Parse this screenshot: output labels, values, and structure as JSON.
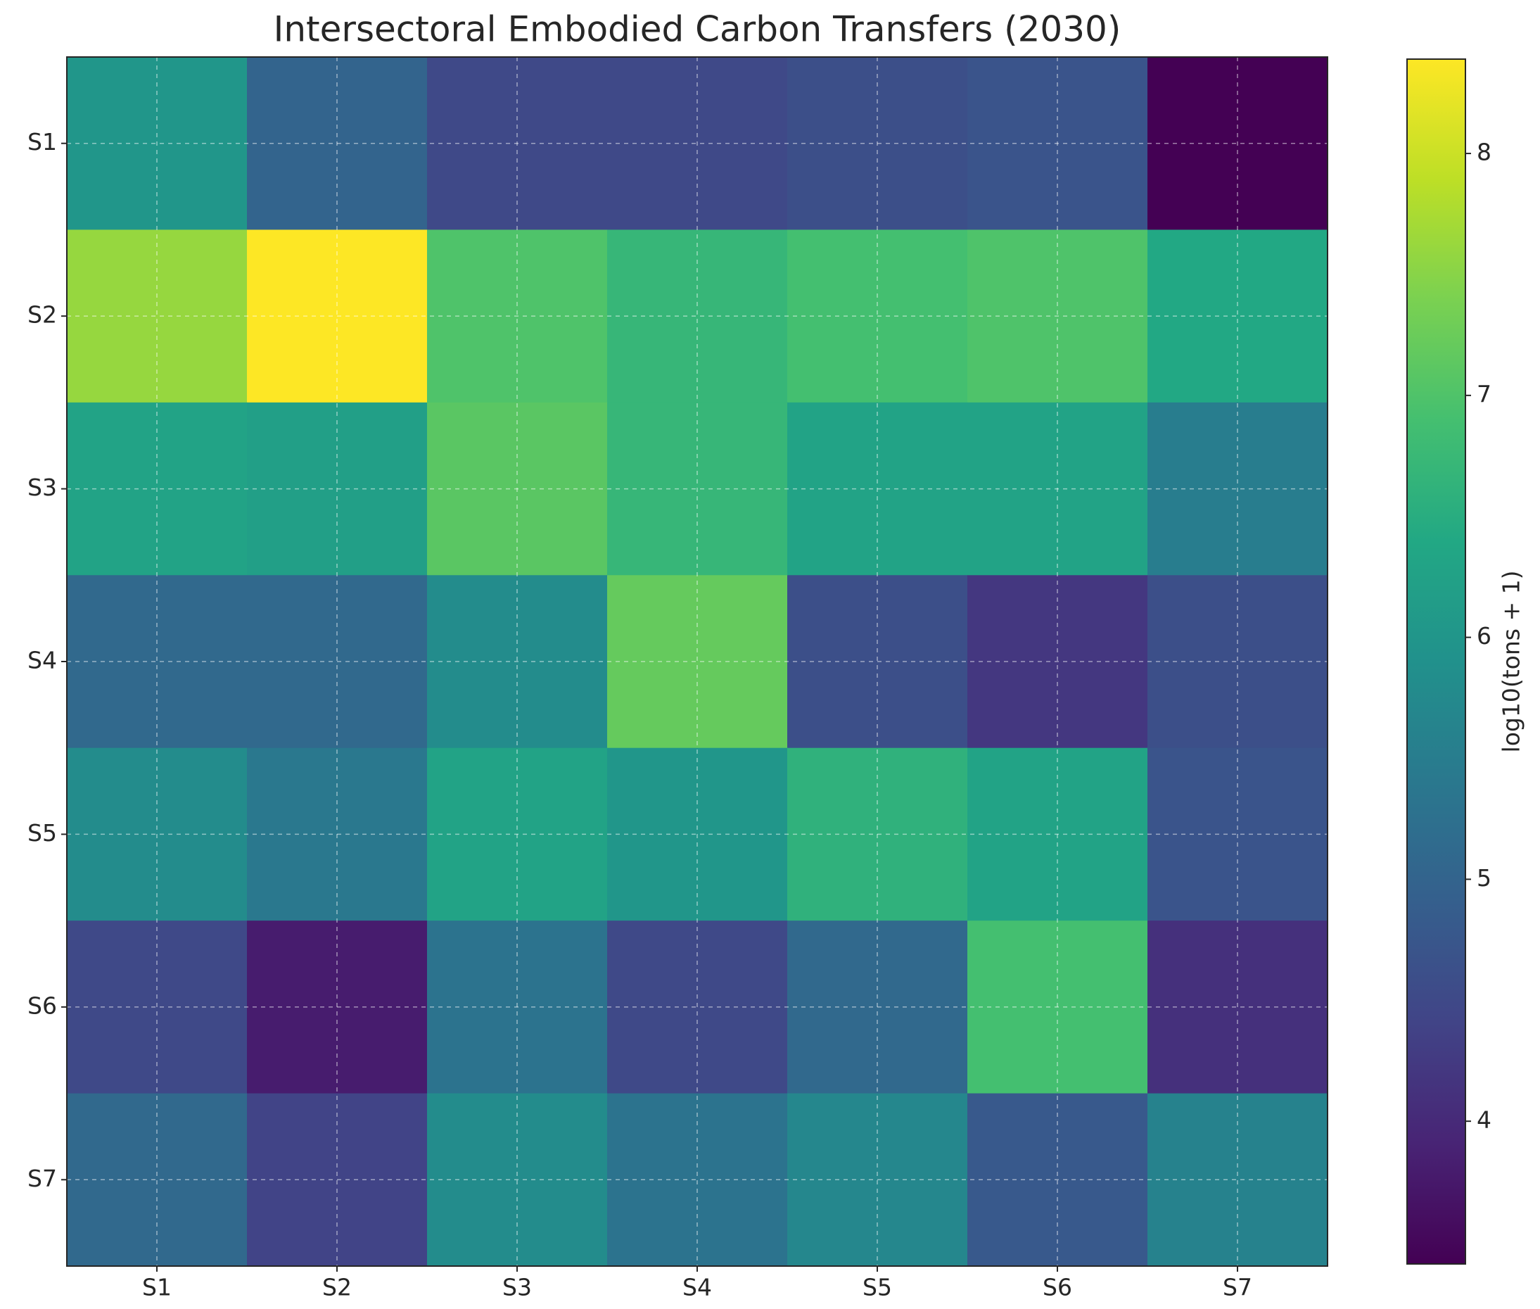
{
  "chart_data": {
    "type": "heatmap",
    "title": "Intersectoral Embodied Carbon Transfers (2030)",
    "x_categories": [
      "S1",
      "S2",
      "S3",
      "S4",
      "S5",
      "S6",
      "S7"
    ],
    "y_categories": [
      "S1",
      "S2",
      "S3",
      "S4",
      "S5",
      "S6",
      "S7"
    ],
    "values": [
      [
        6.0,
        5.0,
        4.5,
        4.5,
        4.6,
        4.7,
        3.41
      ],
      [
        7.6,
        8.39,
        7.0,
        6.7,
        6.9,
        7.0,
        6.4
      ],
      [
        6.3,
        6.2,
        7.1,
        6.7,
        6.3,
        6.3,
        5.5
      ],
      [
        5.1,
        5.1,
        5.8,
        7.2,
        4.6,
        4.2,
        4.6
      ],
      [
        5.8,
        5.4,
        6.3,
        6.0,
        6.6,
        6.3,
        4.7
      ],
      [
        4.5,
        3.8,
        5.3,
        4.5,
        5.1,
        6.9,
        4.1
      ],
      [
        5.1,
        4.4,
        5.8,
        5.3,
        5.7,
        4.8,
        5.6
      ]
    ],
    "colormap": "viridis",
    "clim": [
      3.41,
      8.39
    ],
    "cticks": [
      4,
      5,
      6,
      7,
      8
    ],
    "colorbar_label": "log10(tons + 1)",
    "grid": true
  }
}
